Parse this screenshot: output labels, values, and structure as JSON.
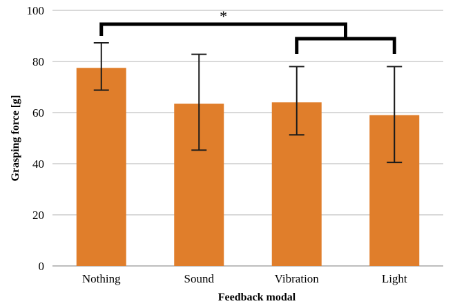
{
  "chart_data": {
    "type": "bar",
    "title": "",
    "xlabel": "Feedback modal",
    "ylabel": "Grasping force [g]",
    "ylim": [
      0,
      100
    ],
    "yticks": [
      0,
      20,
      40,
      60,
      80,
      100
    ],
    "grid": true,
    "categories": [
      "Nothing",
      "Sound",
      "Vibration",
      "Light"
    ],
    "values": [
      77.5,
      63.5,
      64.0,
      59.0
    ],
    "error_lower": [
      68.8,
      45.3,
      51.3,
      40.5
    ],
    "error_upper": [
      87.3,
      82.8,
      78.0,
      78.0
    ],
    "bar_color": "#E07E2B",
    "significance": [
      {
        "from_category": "Nothing",
        "to_group": [
          "Vibration",
          "Light"
        ],
        "label": "*"
      }
    ]
  }
}
